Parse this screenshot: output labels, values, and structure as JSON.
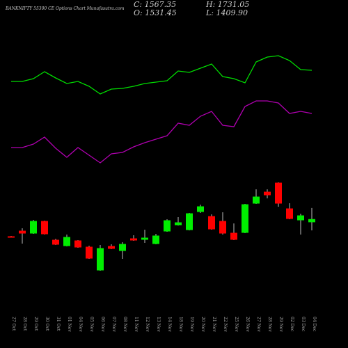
{
  "chart_data": {
    "type": "candlestick",
    "title": "BANKNIFTY 55300 CE Options Chart Munafasutra.com",
    "header": {
      "close": "C: 1567.35",
      "open": "O: 1531.45",
      "high": "H: 1731.05",
      "low": "L: 1409.90"
    },
    "categories": [
      "27 Oct",
      "28 Oct",
      "29 Oct",
      "30 Oct",
      "31 Oct",
      "01 Nov",
      "04 Nov",
      "05 Nov",
      "06 Nov",
      "07 Nov",
      "08 Nov",
      "11 Nov",
      "12 Nov",
      "13 Nov",
      "14 Nov",
      "18 Nov",
      "19 Nov",
      "20 Nov",
      "21 Nov",
      "22 Nov",
      "25 Nov",
      "26 Nov",
      "27 Nov",
      "28 Nov",
      "29 Nov",
      "02 Dec",
      "03 Dec",
      "04 Dec"
    ],
    "open": [
      1320,
      1400,
      1370,
      1540,
      1270,
      1190,
      1260,
      1170,
      840,
      1180,
      1120,
      1290,
      1280,
      1220,
      1400,
      1490,
      1420,
      1680,
      1610,
      1540,
      1370,
      1380,
      1800,
      1960,
      2090,
      1720,
      1560,
      1531.45
    ],
    "close": [
      1315,
      1370,
      1540,
      1360,
      1210,
      1310,
      1170,
      1010,
      1150,
      1150,
      1210,
      1270,
      1300,
      1330,
      1550,
      1520,
      1650,
      1750,
      1430,
      1370,
      1280,
      1780,
      1890,
      1920,
      1800,
      1580,
      1620,
      1567.35
    ],
    "high": [
      1330,
      1440,
      1560,
      1550,
      1290,
      1350,
      1270,
      1190,
      1200,
      1210,
      1240,
      1340,
      1420,
      1360,
      1570,
      1600,
      1660,
      1780,
      1640,
      1670,
      1510,
      1790,
      2000,
      2000,
      2100,
      1800,
      1650,
      1731.05
    ],
    "low": [
      1310,
      1220,
      1360,
      1350,
      1200,
      1180,
      1160,
      1000,
      830,
      1140,
      1000,
      1260,
      1230,
      1210,
      1390,
      1480,
      1410,
      1660,
      1420,
      1350,
      1270,
      1370,
      1790,
      1870,
      1750,
      1570,
      1350,
      1409.9
    ],
    "up_color": "#00ee00",
    "down_color": "#ff0000",
    "lines": [
      {
        "color": "#00dd00",
        "values": [
          3550,
          3550,
          3590,
          3690,
          3600,
          3520,
          3550,
          3480,
          3370,
          3440,
          3450,
          3480,
          3520,
          3540,
          3560,
          3700,
          3680,
          3740,
          3800,
          3620,
          3590,
          3530,
          3830,
          3900,
          3920,
          3850,
          3720,
          3710
        ]
      },
      {
        "color": "#b000b0",
        "values": [
          2600,
          2600,
          2650,
          2750,
          2590,
          2460,
          2600,
          2490,
          2380,
          2510,
          2530,
          2610,
          2670,
          2720,
          2770,
          2950,
          2920,
          3050,
          3120,
          2920,
          2900,
          3190,
          3270,
          3270,
          3240,
          3090,
          3120,
          3090
        ]
      }
    ],
    "ylim": [
      220,
      4720
    ]
  }
}
